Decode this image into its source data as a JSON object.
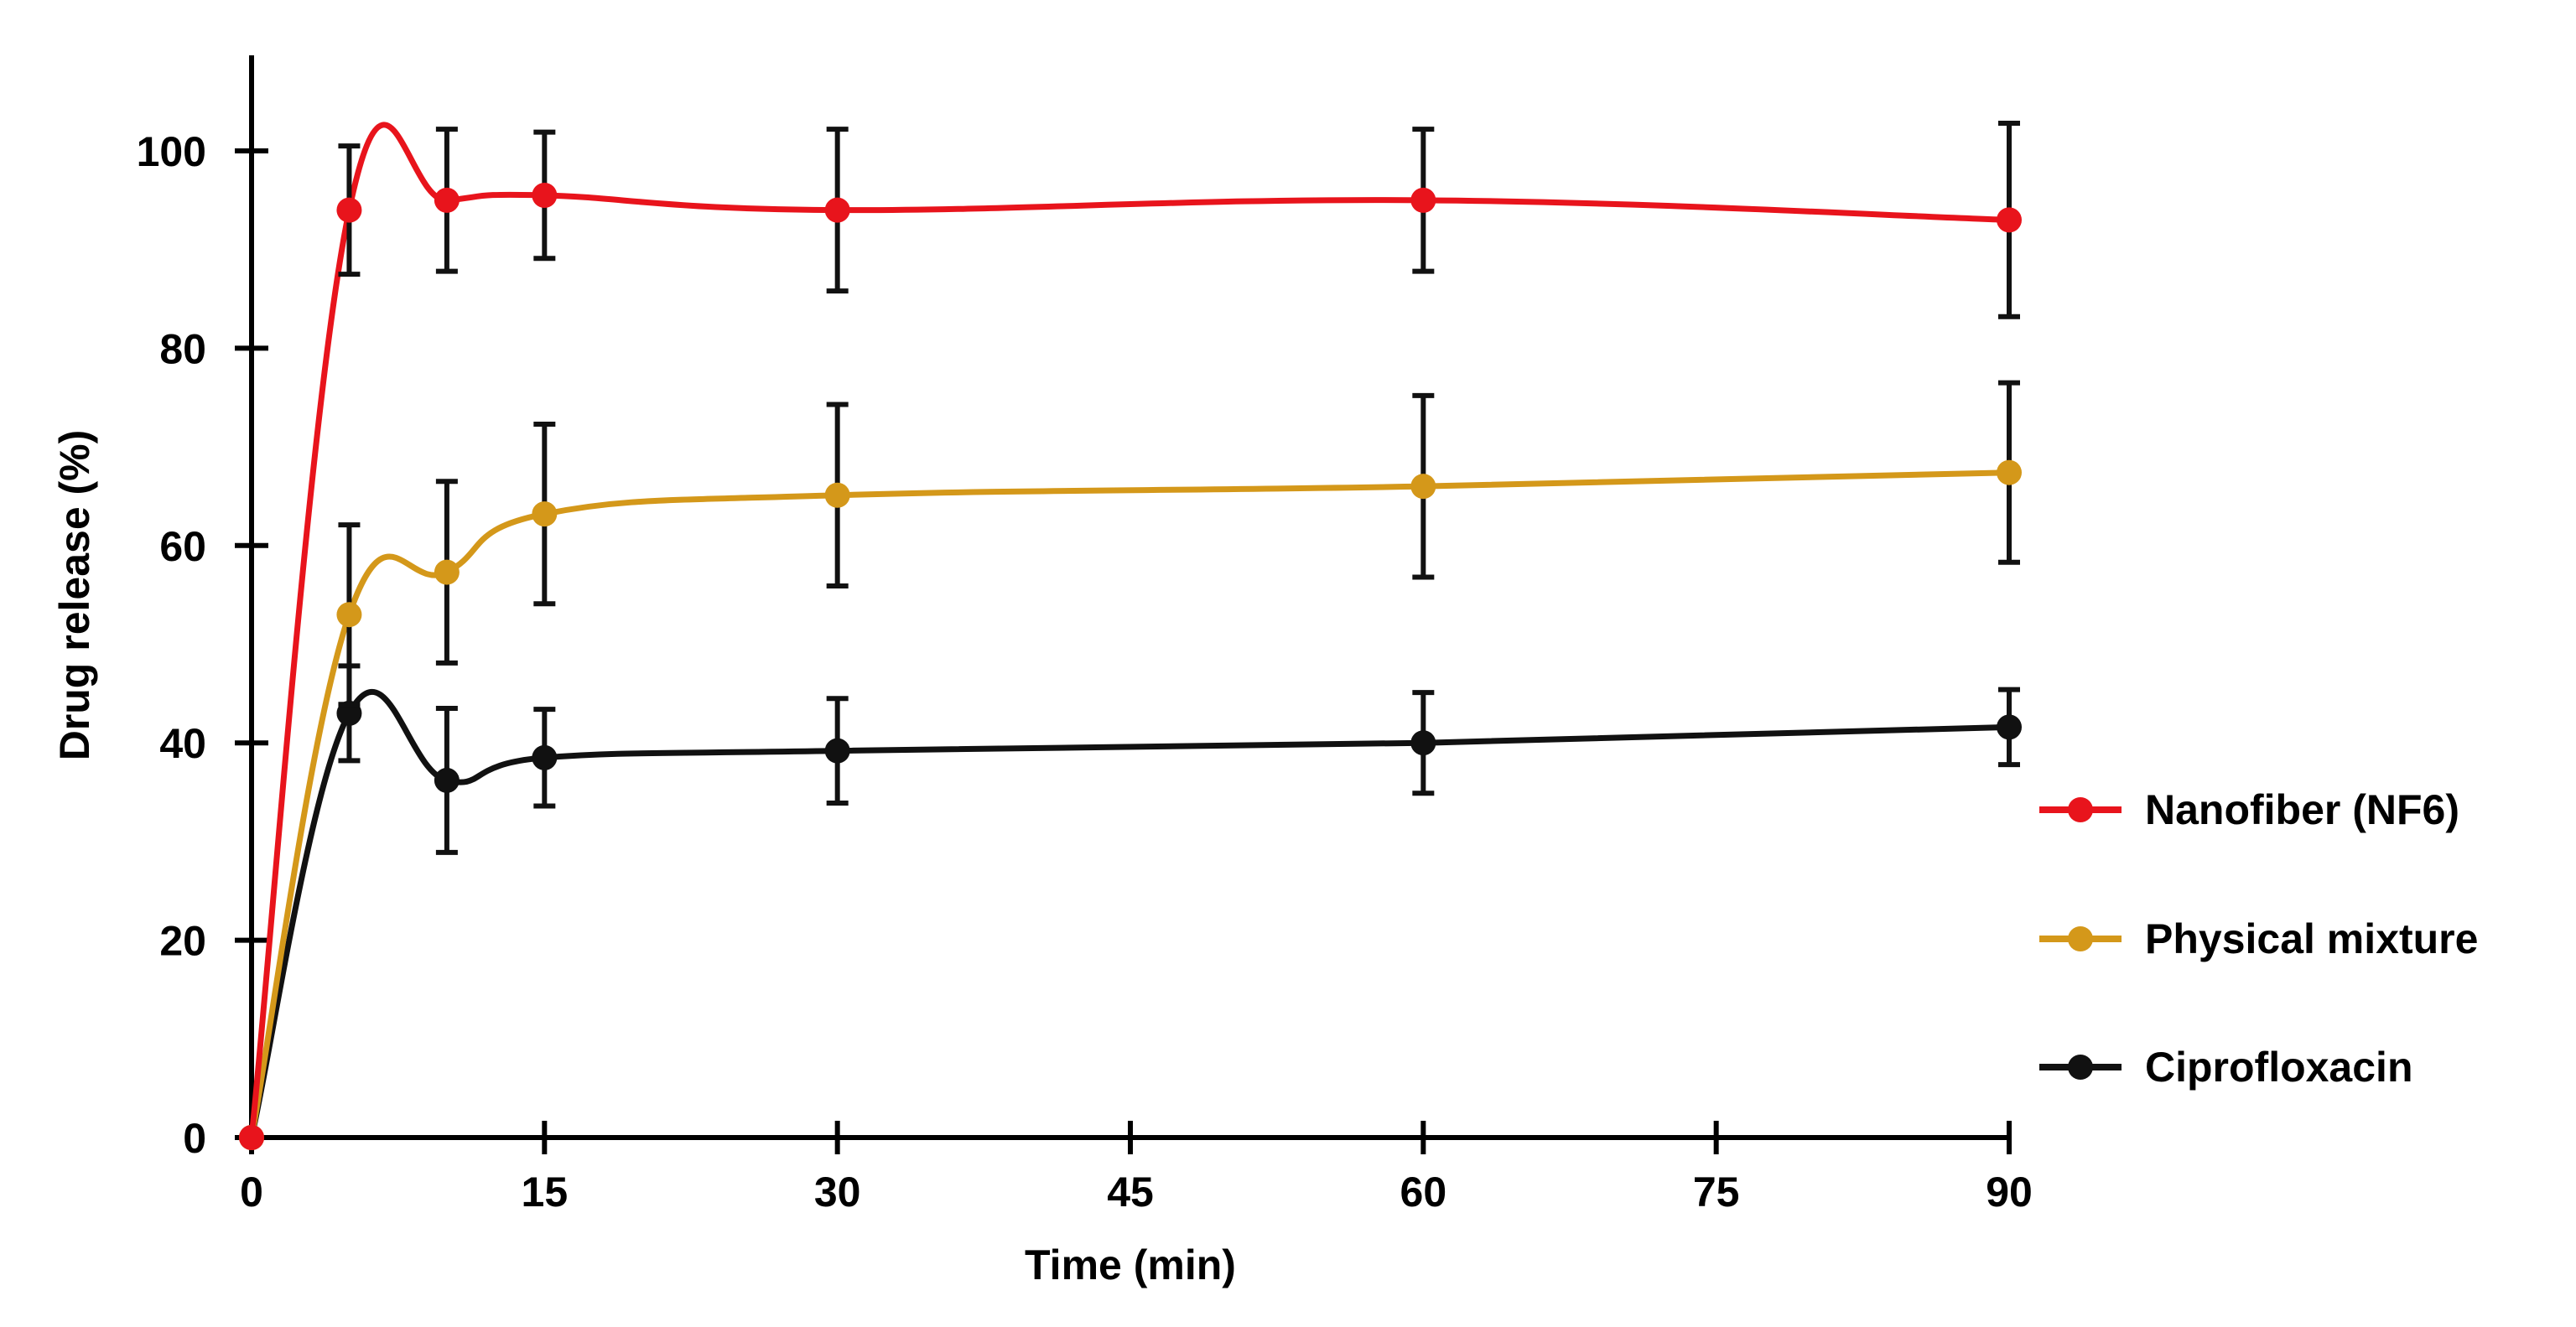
{
  "chart_data": {
    "type": "line",
    "title": "",
    "xlabel": "Time (min)",
    "ylabel": "Drug release (%)",
    "xlim": [
      0,
      90
    ],
    "ylim": [
      0,
      110
    ],
    "x_ticks": [
      0,
      15,
      30,
      45,
      60,
      75,
      90
    ],
    "y_ticks": [
      0,
      20,
      40,
      60,
      80,
      100
    ],
    "grid": false,
    "legend_position": "right",
    "series": [
      {
        "name": "Nanofiber (NF6)",
        "color": "#e8141c",
        "x": [
          0,
          5,
          10,
          15,
          30,
          60,
          90
        ],
        "values": [
          0,
          94,
          95,
          95.5,
          94,
          95,
          93
        ],
        "error": [
          0,
          6.5,
          7.2,
          6.4,
          8.2,
          7.2,
          9.8
        ]
      },
      {
        "name": "Physical mixture",
        "color": "#d4981a",
        "x": [
          0,
          5,
          10,
          15,
          30,
          60,
          90
        ],
        "values": [
          0,
          53,
          57.3,
          63.2,
          65.1,
          66,
          67.4
        ],
        "error": [
          0,
          9.1,
          9.2,
          9.1,
          9.2,
          9.2,
          9.1
        ]
      },
      {
        "name": "Ciprofloxacin",
        "color": "#111111",
        "x": [
          0,
          5,
          10,
          15,
          30,
          60,
          90
        ],
        "values": [
          0,
          43,
          36.2,
          38.5,
          39.2,
          40,
          41.6
        ],
        "error": [
          0,
          4.8,
          7.3,
          4.9,
          5.3,
          5.1,
          3.8
        ]
      }
    ]
  }
}
